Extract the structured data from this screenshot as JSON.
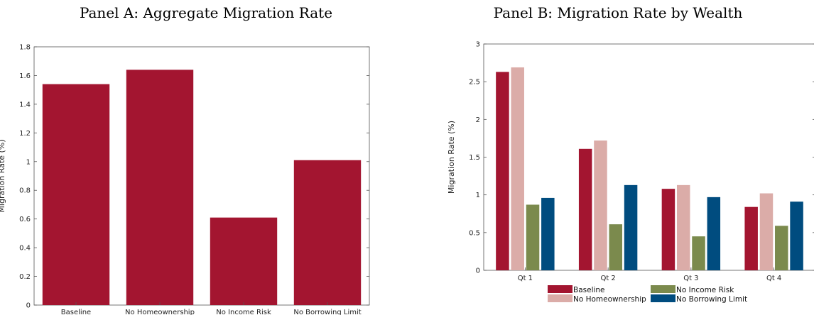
{
  "chart_data": [
    {
      "type": "bar",
      "title": "Panel A: Aggregate Migration Rate",
      "xlabel": "",
      "ylabel": "Migration Rate (%)",
      "ylim": [
        0,
        1.8
      ],
      "yticks": [
        "0",
        "0.2",
        "0.4",
        "0.6",
        "0.8",
        "1",
        "1.2",
        "1.4",
        "1.6",
        "1.8"
      ],
      "categories": [
        "Baseline",
        "No Homeownership",
        "No Income Risk",
        "No Borrowing Limit"
      ],
      "values": [
        1.54,
        1.64,
        0.61,
        1.01
      ],
      "color": "#a31530",
      "grid": false
    },
    {
      "type": "bar",
      "title": "Panel B: Migration Rate by Wealth",
      "xlabel": "",
      "ylabel": "Migration Rate (%)",
      "ylim": [
        0,
        3
      ],
      "yticks": [
        "0",
        "0.5",
        "1",
        "1.5",
        "2",
        "2.5",
        "3"
      ],
      "categories": [
        "Qt 1",
        "Qt 2",
        "Qt 3",
        "Qt 4"
      ],
      "series": [
        {
          "name": "Baseline",
          "color": "#a31530",
          "values": [
            2.63,
            1.61,
            1.08,
            0.84
          ]
        },
        {
          "name": "No Homeownership",
          "color": "#dbaca8",
          "values": [
            2.69,
            1.72,
            1.13,
            1.02
          ]
        },
        {
          "name": "No Income Risk",
          "color": "#7b8a4d",
          "values": [
            0.87,
            0.61,
            0.45,
            0.59
          ]
        },
        {
          "name": "No Borrowing Limit",
          "color": "#004c7f",
          "values": [
            0.96,
            1.13,
            0.97,
            0.91
          ]
        }
      ],
      "legend": "bottom",
      "grid": false
    }
  ]
}
